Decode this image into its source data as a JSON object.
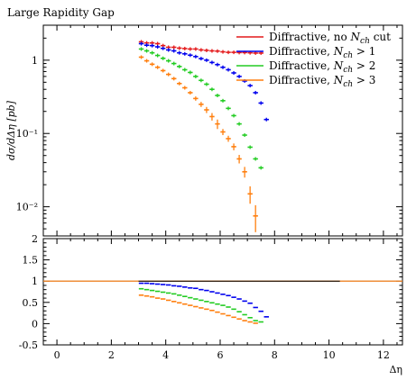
{
  "chart_data": {
    "type": "scatter",
    "title": "Large Rapidity Gap",
    "xlabel": "Δη",
    "ylabel": "dσ/dΔη [pb]",
    "xlim": [
      -0.5,
      12.7
    ],
    "top_panel": {
      "scale": "log",
      "ylim": [
        0.004,
        3.0
      ],
      "yticks": [
        {
          "value": 1,
          "label": "1"
        },
        {
          "value": 0.1,
          "label": "10⁻¹"
        },
        {
          "value": 0.01,
          "label": "10⁻²"
        }
      ]
    },
    "bottom_panel": {
      "scale": "linear",
      "ylim": [
        -0.5,
        2
      ],
      "yticks": [
        {
          "value": 2,
          "label": "2"
        },
        {
          "value": 1.5,
          "label": "1.5"
        },
        {
          "value": 1,
          "label": "1"
        },
        {
          "value": 0.5,
          "label": "0.5"
        },
        {
          "value": 0,
          "label": "0"
        },
        {
          "value": -0.5,
          "label": "-0.5"
        }
      ]
    },
    "xticks": [
      {
        "value": 0,
        "label": "0"
      },
      {
        "value": 2,
        "label": "2"
      },
      {
        "value": 4,
        "label": "4"
      },
      {
        "value": 6,
        "label": "6"
      },
      {
        "value": 8,
        "label": "8"
      },
      {
        "value": 10,
        "label": "10"
      },
      {
        "value": 12,
        "label": "12"
      }
    ],
    "legend": {
      "placement": "top-right"
    },
    "series": [
      {
        "name": "Diffractive, no N_ch cut",
        "legend_label": {
          "pre": "Diffractive, no ",
          "sym": "N",
          "sub": "ch",
          "post": " cut"
        },
        "color": "#e41a1c",
        "x": [
          3.1,
          3.3,
          3.5,
          3.7,
          3.9,
          4.1,
          4.3,
          4.5,
          4.7,
          4.9,
          5.1,
          5.3,
          5.5,
          5.7,
          5.9,
          6.1,
          6.3,
          6.5,
          6.7,
          6.9,
          7.1,
          7.3,
          7.5
        ],
        "y": [
          1.78,
          1.72,
          1.72,
          1.68,
          1.58,
          1.5,
          1.5,
          1.46,
          1.44,
          1.42,
          1.42,
          1.38,
          1.36,
          1.34,
          1.33,
          1.3,
          1.28,
          1.28,
          1.27,
          1.27,
          1.26,
          1.25,
          1.25
        ],
        "ratio": [
          1,
          1,
          1,
          1,
          1,
          1,
          1,
          1,
          1,
          1,
          1,
          1,
          1,
          1,
          1,
          1,
          1,
          1,
          1,
          1,
          1,
          1,
          1
        ]
      },
      {
        "name": "Diffractive, N_ch > 1",
        "legend_label": {
          "pre": "Diffractive, ",
          "sym": "N",
          "sub": "ch",
          "post": " > 1"
        },
        "color": "#0000ee",
        "x": [
          3.1,
          3.3,
          3.5,
          3.7,
          3.9,
          4.1,
          4.3,
          4.5,
          4.7,
          4.9,
          5.1,
          5.3,
          5.5,
          5.7,
          5.9,
          6.1,
          6.3,
          6.5,
          6.7,
          6.9,
          7.1,
          7.3,
          7.5,
          7.7
        ],
        "y": [
          1.68,
          1.6,
          1.58,
          1.52,
          1.45,
          1.38,
          1.34,
          1.26,
          1.22,
          1.17,
          1.12,
          1.05,
          1.0,
          0.93,
          0.87,
          0.8,
          0.74,
          0.67,
          0.6,
          0.52,
          0.45,
          0.36,
          0.26,
          0.155
        ],
        "ratio": [
          0.95,
          0.95,
          0.94,
          0.93,
          0.92,
          0.91,
          0.89,
          0.88,
          0.86,
          0.84,
          0.83,
          0.8,
          0.78,
          0.75,
          0.72,
          0.69,
          0.66,
          0.62,
          0.58,
          0.53,
          0.48,
          0.38,
          0.29,
          0.16
        ]
      },
      {
        "name": "Diffractive, N_ch > 2",
        "legend_label": {
          "pre": "Diffractive, ",
          "sym": "N",
          "sub": "ch",
          "post": " > 2"
        },
        "color": "#22cc22",
        "x": [
          3.1,
          3.3,
          3.5,
          3.7,
          3.9,
          4.1,
          4.3,
          4.5,
          4.7,
          4.9,
          5.1,
          5.3,
          5.5,
          5.7,
          5.9,
          6.1,
          6.3,
          6.5,
          6.7,
          6.9,
          7.1,
          7.3,
          7.5
        ],
        "y": [
          1.42,
          1.34,
          1.26,
          1.16,
          1.06,
          0.98,
          0.9,
          0.82,
          0.74,
          0.68,
          0.6,
          0.53,
          0.47,
          0.4,
          0.33,
          0.28,
          0.22,
          0.175,
          0.135,
          0.095,
          0.065,
          0.045,
          0.034
        ],
        "ratio": [
          0.82,
          0.8,
          0.78,
          0.76,
          0.74,
          0.72,
          0.7,
          0.67,
          0.64,
          0.61,
          0.58,
          0.55,
          0.52,
          0.49,
          0.46,
          0.43,
          0.39,
          0.34,
          0.28,
          0.21,
          0.14,
          0.07,
          0.04
        ]
      },
      {
        "name": "Diffractive, N_ch > 3",
        "legend_label": {
          "pre": "Diffractive, ",
          "sym": "N",
          "sub": "ch",
          "post": " > 3"
        },
        "color": "#ff7f0e",
        "x": [
          3.1,
          3.3,
          3.5,
          3.7,
          3.9,
          4.1,
          4.3,
          4.5,
          4.7,
          4.9,
          5.1,
          5.3,
          5.5,
          5.7,
          5.9,
          6.1,
          6.3,
          6.5,
          6.7,
          6.9,
          7.1,
          7.3
        ],
        "y": [
          1.1,
          0.98,
          0.88,
          0.8,
          0.72,
          0.64,
          0.56,
          0.48,
          0.42,
          0.36,
          0.3,
          0.25,
          0.21,
          0.17,
          0.135,
          0.105,
          0.085,
          0.066,
          0.045,
          0.03,
          0.015,
          0.0075
        ],
        "yerr": [
          0.02,
          0.02,
          0.02,
          0.02,
          0.02,
          0.02,
          0.02,
          0.02,
          0.02,
          0.02,
          0.02,
          0.02,
          0.02,
          0.02,
          0.02,
          0.01,
          0.008,
          0.007,
          0.006,
          0.005,
          0.004,
          0.003
        ],
        "ratio": [
          0.67,
          0.65,
          0.63,
          0.6,
          0.58,
          0.55,
          0.52,
          0.49,
          0.46,
          0.43,
          0.4,
          0.37,
          0.34,
          0.31,
          0.27,
          0.23,
          0.19,
          0.15,
          0.11,
          0.07,
          0.04,
          0.01
        ]
      }
    ],
    "reference_line": {
      "value": 1,
      "color": "#000000"
    }
  }
}
